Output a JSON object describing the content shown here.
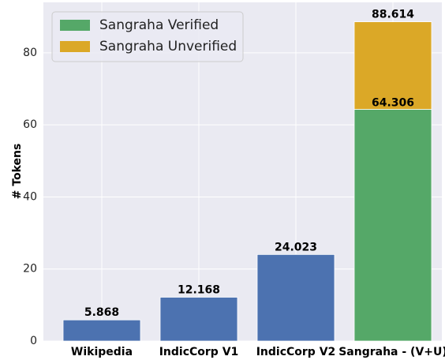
{
  "chart_data": {
    "type": "bar",
    "categories": [
      "Wikipedia",
      "IndicCorp V1",
      "IndicCorp V2",
      "Sangraha - (V+U)"
    ],
    "values": [
      5.868,
      12.168,
      24.023,
      null
    ],
    "color": "#4c72b0",
    "series": [
      {
        "name": "Sangraha Verified",
        "color": "#55a868",
        "values": [
          null,
          null,
          null,
          64.306
        ]
      },
      {
        "name": "Sangraha Unverified",
        "color": "#dba827",
        "values": [
          null,
          null,
          null,
          24.308
        ]
      }
    ],
    "totals": [
      null,
      null,
      null,
      88.614
    ],
    "ylabel": "# Tokens",
    "ylim": [
      0,
      94
    ],
    "yticks": [
      0,
      20,
      40,
      60,
      80
    ],
    "grid": true,
    "legend": "upper left"
  }
}
